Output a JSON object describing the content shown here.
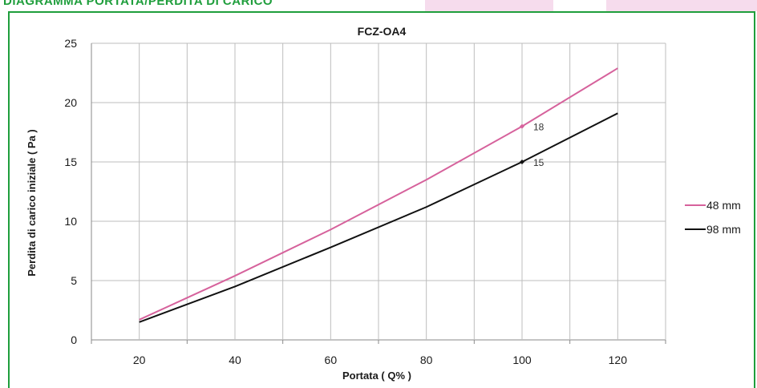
{
  "header": {
    "heading": "DIAGRAMMA PORTATA/PERDITA DI CARICO"
  },
  "colors": {
    "frame": "#1f9e3c",
    "tab": "#f6dced",
    "grid": "#bdbdbd",
    "axis": "#8a8a8a"
  },
  "chart_data": {
    "type": "line",
    "title": "FCZ-OA4",
    "xlabel": "Portata ( Q% )",
    "ylabel": "Perdita di carico iniziale ( Pa )",
    "xlim": [
      10,
      130
    ],
    "ylim": [
      0,
      25
    ],
    "xticks": [
      20,
      40,
      60,
      80,
      100,
      120
    ],
    "yticks": [
      0,
      5,
      10,
      15,
      20,
      25
    ],
    "grid": true,
    "legend_position": "right",
    "series": [
      {
        "name": "48 mm",
        "color": "#d6629c",
        "x": [
          20,
          40,
          60,
          80,
          100,
          120
        ],
        "y": [
          1.7,
          5.4,
          9.3,
          13.5,
          18.0,
          22.9
        ]
      },
      {
        "name": "98 mm",
        "color": "#111111",
        "x": [
          20,
          40,
          60,
          80,
          100,
          120
        ],
        "y": [
          1.5,
          4.5,
          7.8,
          11.2,
          15.0,
          19.1
        ]
      }
    ],
    "annotations": [
      {
        "series": 0,
        "x": 100,
        "y": 18,
        "label": "18"
      },
      {
        "series": 1,
        "x": 100,
        "y": 15,
        "label": "15"
      }
    ]
  }
}
